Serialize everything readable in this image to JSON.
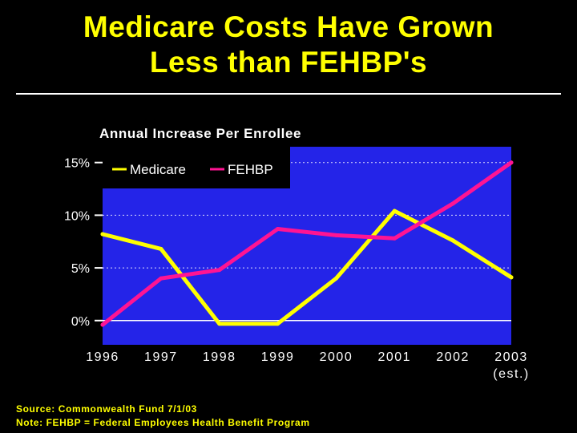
{
  "slide": {
    "title_line1": "Medicare Costs Have Grown",
    "title_line2": "Less than FEHBP's"
  },
  "chart_data": {
    "type": "line",
    "title": "Annual Increase Per Enrollee",
    "categories": [
      "1996",
      "1997",
      "1998",
      "1999",
      "2000",
      "2001",
      "2002",
      "2003"
    ],
    "category_notes": {
      "2003": "(est.)"
    },
    "yticks": [
      "0%",
      "5%",
      "10%",
      "15%"
    ],
    "ytick_values": [
      0,
      5,
      10,
      15
    ],
    "ylim": [
      -2.3,
      16.5
    ],
    "grid": "dotted horizontal",
    "legend_position": "top-left",
    "series": [
      {
        "name": "Medicare",
        "color": "#FFFF00",
        "values": [
          8.2,
          6.8,
          -0.3,
          -0.3,
          4.0,
          10.4,
          7.6,
          4.1
        ]
      },
      {
        "name": "FEHBP",
        "color": "#FF1493",
        "values": [
          -0.4,
          4.0,
          4.8,
          8.7,
          8.1,
          7.8,
          11.1,
          15.0
        ]
      }
    ]
  },
  "colors": {
    "plot_background": "#2424E8",
    "title_text": "#FFFF00",
    "axis_text": "#FFFFFF"
  },
  "footer": {
    "source": "Source: Commonwealth Fund 7/1/03",
    "note": "Note: FEHBP = Federal Employees Health Benefit Program"
  }
}
